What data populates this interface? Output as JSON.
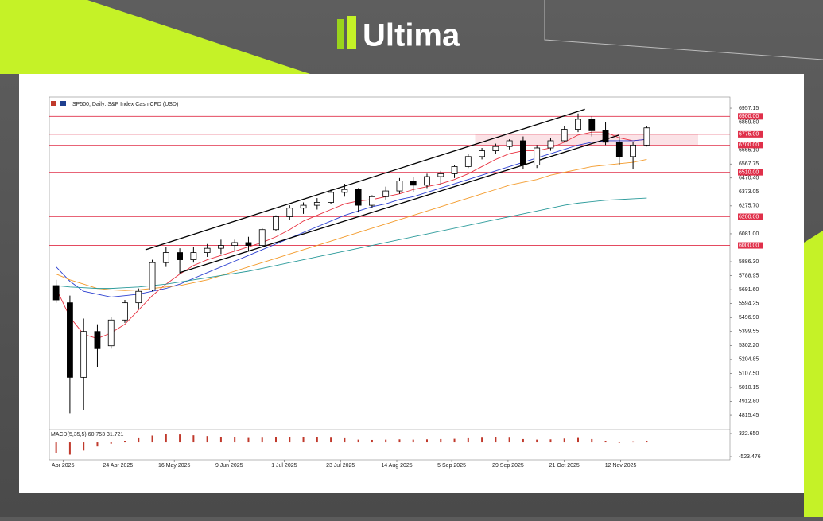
{
  "brand": "Ultima",
  "chart_data": {
    "type": "candlestick",
    "title": "SP500, Daily:  S&P Index Cash CFD (USD)",
    "x": [
      0,
      1,
      2,
      3,
      4,
      5,
      6,
      7,
      8,
      9,
      10,
      11,
      12,
      13,
      14,
      15,
      16,
      17,
      18,
      19,
      20,
      21,
      22,
      23,
      24,
      25,
      26,
      27,
      28,
      29,
      30,
      31,
      32,
      33,
      34,
      35,
      36,
      37,
      38,
      39,
      40,
      41,
      42,
      43
    ],
    "open": [
      5720,
      5600,
      5080,
      5400,
      5300,
      5480,
      5600,
      5690,
      5880,
      5950,
      5900,
      5950,
      5980,
      6000,
      6020,
      6000,
      6110,
      6200,
      6260,
      6280,
      6300,
      6370,
      6390,
      6280,
      6340,
      6380,
      6450,
      6420,
      6480,
      6500,
      6550,
      6620,
      6660,
      6690,
      6730,
      6560,
      6680,
      6730,
      6810,
      6880,
      6800,
      6720,
      6620,
      6700
    ],
    "high": [
      5760,
      5650,
      5490,
      5450,
      5500,
      5620,
      5700,
      5900,
      5990,
      5980,
      5990,
      6010,
      6040,
      6040,
      6060,
      6120,
      6210,
      6280,
      6300,
      6330,
      6390,
      6430,
      6400,
      6350,
      6410,
      6470,
      6480,
      6500,
      6520,
      6560,
      6640,
      6680,
      6710,
      6740,
      6760,
      6700,
      6750,
      6830,
      6920,
      6900,
      6860,
      6760,
      6720,
      6830
    ],
    "low": [
      5600,
      4830,
      4850,
      5150,
      5280,
      5460,
      5560,
      5680,
      5850,
      5800,
      5880,
      5920,
      5940,
      5960,
      5960,
      5990,
      6100,
      6180,
      6220,
      6250,
      6290,
      6340,
      6230,
      6260,
      6320,
      6360,
      6370,
      6400,
      6420,
      6470,
      6540,
      6600,
      6640,
      6670,
      6530,
      6540,
      6660,
      6720,
      6790,
      6760,
      6700,
      6560,
      6530,
      6690
    ],
    "close": [
      5620,
      5080,
      5400,
      5280,
      5480,
      5600,
      5680,
      5880,
      5950,
      5900,
      5950,
      5980,
      6000,
      6020,
      6000,
      6110,
      6200,
      6260,
      6280,
      6300,
      6370,
      6390,
      6280,
      6340,
      6380,
      6450,
      6420,
      6480,
      6500,
      6550,
      6620,
      6660,
      6690,
      6730,
      6560,
      6680,
      6730,
      6810,
      6880,
      6800,
      6720,
      6620,
      6700,
      6820
    ],
    "up_color": "#ffffff",
    "down_color": "#000000",
    "series": [
      {
        "color": "#e8303f",
        "values": [
          5700,
          5500,
          5380,
          5350,
          5390,
          5450,
          5550,
          5650,
          5730,
          5800,
          5860,
          5900,
          5930,
          5960,
          5990,
          6020,
          6060,
          6110,
          6170,
          6210,
          6250,
          6290,
          6310,
          6320,
          6340,
          6360,
          6390,
          6410,
          6430,
          6460,
          6500,
          6550,
          6600,
          6640,
          6660,
          6660,
          6680,
          6720,
          6770,
          6790,
          6790,
          6750,
          6730,
          6740
        ]
      },
      {
        "color": "#2b3fd0",
        "values": [
          5850,
          5750,
          5680,
          5660,
          5640,
          5650,
          5660,
          5680,
          5700,
          5730,
          5770,
          5810,
          5850,
          5890,
          5930,
          5970,
          6010,
          6050,
          6090,
          6130,
          6170,
          6210,
          6240,
          6270,
          6290,
          6320,
          6340,
          6370,
          6400,
          6430,
          6460,
          6490,
          6520,
          6550,
          6580,
          6610,
          6640,
          6670,
          6700,
          6720,
          6730,
          6730,
          6730,
          6740
        ]
      },
      {
        "color": "#f39a2a",
        "values": [
          5800,
          5760,
          5730,
          5700,
          5690,
          5685,
          5690,
          5700,
          5710,
          5720,
          5740,
          5760,
          5790,
          5820,
          5850,
          5880,
          5910,
          5940,
          5970,
          6000,
          6030,
          6060,
          6090,
          6120,
          6150,
          6180,
          6210,
          6240,
          6270,
          6300,
          6330,
          6360,
          6390,
          6420,
          6440,
          6460,
          6490,
          6510,
          6530,
          6550,
          6560,
          6570,
          6580,
          6600
        ]
      },
      {
        "color": "#2a9a9a",
        "values": [
          5720,
          5710,
          5705,
          5700,
          5700,
          5705,
          5710,
          5720,
          5730,
          5745,
          5760,
          5775,
          5790,
          5805,
          5820,
          5840,
          5860,
          5880,
          5900,
          5920,
          5940,
          5960,
          5980,
          6000,
          6020,
          6040,
          6060,
          6080,
          6100,
          6120,
          6140,
          6160,
          6180,
          6200,
          6220,
          6240,
          6260,
          6280,
          6295,
          6305,
          6315,
          6320,
          6325,
          6330
        ]
      }
    ],
    "trendlines": [
      {
        "x": [
          6.5,
          38.5
        ],
        "y": [
          5970,
          6950
        ]
      },
      {
        "x": [
          9,
          41
        ],
        "y": [
          5810,
          6770
        ]
      }
    ],
    "levels": [
      {
        "value": 6900,
        "label": "6900.00"
      },
      {
        "value": 6775,
        "label": "6775.00"
      },
      {
        "value": 6700,
        "label": "6700.00"
      },
      {
        "value": 6510,
        "label": "6510.00"
      },
      {
        "value": 6200,
        "label": "6200.00"
      },
      {
        "value": 6000,
        "label": "6000.00"
      }
    ],
    "level_color": "#e0304a",
    "xlim": [
      -0.5,
      43.5
    ],
    "xticks": [
      {
        "value": 0.5,
        "label": "Apr 2025"
      },
      {
        "value": 4.5,
        "label": "24 Apr 2025"
      },
      {
        "value": 8.6,
        "label": "16 May 2025"
      },
      {
        "value": 12.6,
        "label": "9 Jun 2025"
      },
      {
        "value": 16.6,
        "label": "1 Jul 2025"
      },
      {
        "value": 20.7,
        "label": "23 Jul 2025"
      },
      {
        "value": 24.8,
        "label": "14 Aug 2025"
      },
      {
        "value": 28.8,
        "label": "5 Sep 2025"
      },
      {
        "value": 32.9,
        "label": "29 Sep 2025"
      },
      {
        "value": 37,
        "label": "21 Oct 2025"
      },
      {
        "value": 41.1,
        "label": "12 Nov 2025"
      }
    ],
    "ylim": [
      4727,
      7035
    ],
    "yticks": [
      6957.15,
      6859.8,
      6665.1,
      6567.75,
      6470.4,
      6373.05,
      6275.7,
      6081,
      5886.3,
      5788.95,
      5691.6,
      5594.25,
      5496.9,
      5399.55,
      5302.2,
      5204.85,
      5107.5,
      5010.15,
      4912.8,
      4815.45
    ],
    "ytick_labels": [
      "6957.15",
      "6859.80",
      "6665.10",
      "6567.75",
      "6470.40",
      "6373.05",
      "6275.70",
      "6081.00",
      "5886.30",
      "5788.95",
      "5691.60",
      "5594.25",
      "5496.90",
      "5399.55",
      "5302.20",
      "5204.85",
      "5107.50",
      "5010.15",
      "4912.80",
      "4815.45"
    ],
    "macd": {
      "title": "MACD(5,35,5) 60.753 31.721",
      "color": "#c0392b",
      "values": [
        -400,
        -450,
        -300,
        -150,
        -50,
        50,
        150,
        250,
        300,
        290,
        260,
        230,
        200,
        180,
        160,
        170,
        190,
        200,
        190,
        180,
        170,
        150,
        100,
        90,
        100,
        110,
        100,
        110,
        120,
        130,
        150,
        170,
        180,
        170,
        120,
        100,
        110,
        140,
        160,
        120,
        60,
        -20,
        10,
        60
      ],
      "ylim": [
        -640,
        439
      ],
      "yticks": [
        {
          "value": 322.65,
          "label": "322.650"
        },
        {
          "value": -523.476,
          "label": "-523.476"
        }
      ]
    }
  }
}
